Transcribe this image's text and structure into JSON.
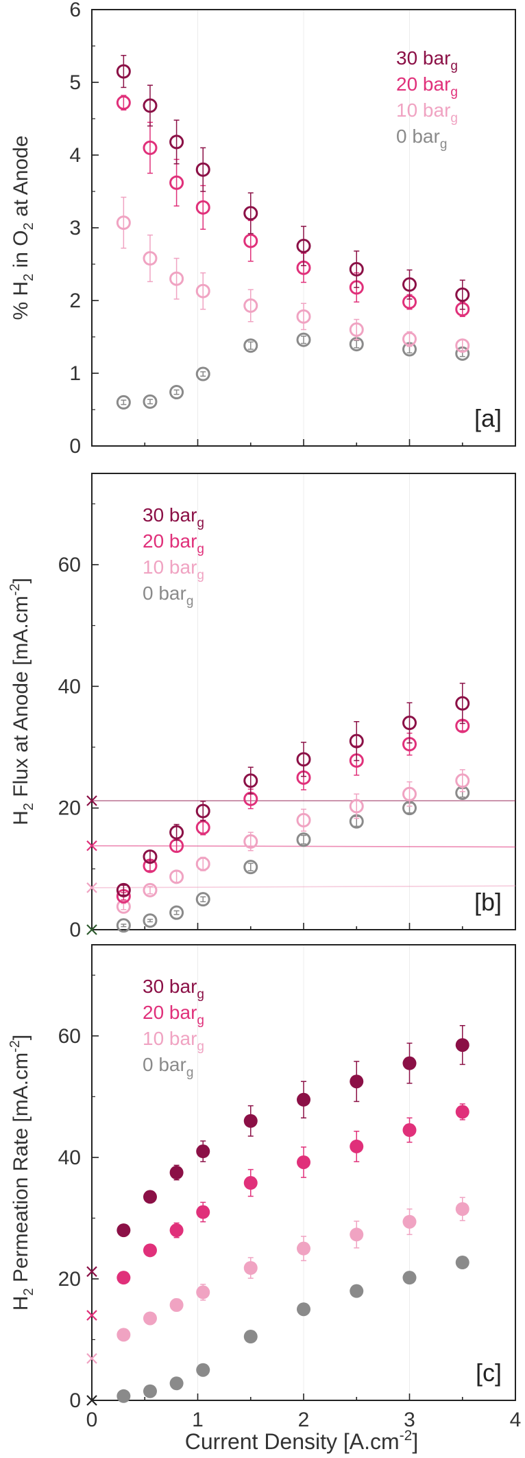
{
  "figure": {
    "x_axis_label": "Current Density [A.cm",
    "x_axis_sup": "-2",
    "x_axis_close": "]",
    "x_ticks": [
      "0",
      "1",
      "2",
      "3",
      "4"
    ]
  },
  "colors": {
    "30": "#8b1046",
    "20": "#e0307a",
    "10": "#f0a3c2",
    "0": "#8a8a8a"
  },
  "chart_data": [
    {
      "type": "scatter",
      "panel": "[a]",
      "ylabel": "% H2 in O2 at Anode",
      "ylabel_parts": [
        "% H",
        "2",
        " in O",
        "2",
        " at Anode"
      ],
      "xlim": [
        0,
        4
      ],
      "ylim": [
        0,
        6
      ],
      "y_ticks": [
        "0",
        "1",
        "2",
        "3",
        "4",
        "5",
        "6"
      ],
      "marker": "open",
      "legend_position": "top-right",
      "series": [
        {
          "name": "30 bar",
          "sub": "g",
          "key": "30",
          "x": [
            0.3,
            0.55,
            0.8,
            1.05,
            1.5,
            2.0,
            2.5,
            3.0,
            3.5
          ],
          "y": [
            5.15,
            4.68,
            4.18,
            3.8,
            3.2,
            2.75,
            2.43,
            2.22,
            2.08
          ],
          "err": [
            0.22,
            0.28,
            0.3,
            0.3,
            0.28,
            0.27,
            0.25,
            0.2,
            0.2
          ]
        },
        {
          "name": "20 bar",
          "sub": "g",
          "key": "20",
          "x": [
            0.3,
            0.55,
            0.8,
            1.05,
            1.5,
            2.0,
            2.5,
            3.0,
            3.5
          ],
          "y": [
            4.72,
            4.1,
            3.62,
            3.28,
            2.82,
            2.45,
            2.18,
            1.98,
            1.88
          ],
          "err": [
            0.1,
            0.35,
            0.32,
            0.3,
            0.28,
            0.2,
            0.2,
            0.1,
            0.1
          ]
        },
        {
          "name": "10 bar",
          "sub": "g",
          "key": "10",
          "x": [
            0.3,
            0.55,
            0.8,
            1.05,
            1.5,
            2.0,
            2.5,
            3.0,
            3.5
          ],
          "y": [
            3.07,
            2.58,
            2.3,
            2.13,
            1.93,
            1.78,
            1.6,
            1.47,
            1.38
          ],
          "err": [
            0.35,
            0.32,
            0.28,
            0.25,
            0.22,
            0.18,
            0.14,
            0.1,
            0.08
          ]
        },
        {
          "name": "0 bar",
          "sub": "g",
          "key": "0",
          "x": [
            0.3,
            0.55,
            0.8,
            1.05,
            1.5,
            2.0,
            2.5,
            3.0,
            3.5
          ],
          "y": [
            0.6,
            0.61,
            0.74,
            0.99,
            1.38,
            1.46,
            1.4,
            1.33,
            1.27
          ],
          "err": [
            0.03,
            0.03,
            0.03,
            0.03,
            0.05,
            0.05,
            0.05,
            0.05,
            0.04
          ]
        }
      ]
    },
    {
      "type": "scatter",
      "panel": "[b]",
      "ylabel": "H2 Flux at Anode [mA.cm-2]",
      "ylabel_parts": [
        "H",
        "2",
        " Flux at Anode [mA.cm",
        "-2",
        "]"
      ],
      "xlim": [
        0,
        4
      ],
      "ylim": [
        0,
        75
      ],
      "y_ticks": [
        "0",
        "20",
        "40",
        "60"
      ],
      "marker": "open",
      "legend_position": "top-left",
      "reference_lines": [
        {
          "key": "30",
          "y0": 21.2,
          "y1": 21.2
        },
        {
          "key": "20",
          "y0": 13.8,
          "y1": 13.6
        },
        {
          "key": "10",
          "y0": 6.9,
          "y1": 7.2
        }
      ],
      "axis_markers": [
        {
          "key": "30",
          "y": 21.2
        },
        {
          "key": "20",
          "y": 13.8
        },
        {
          "key": "10",
          "y": 6.9
        },
        {
          "key": "zero",
          "y": 0
        }
      ],
      "series": [
        {
          "name": "30 bar",
          "sub": "g",
          "key": "30",
          "x": [
            0.3,
            0.55,
            0.8,
            1.05,
            1.5,
            2.0,
            2.5,
            3.0,
            3.5
          ],
          "y": [
            6.5,
            12.0,
            16.0,
            19.5,
            24.5,
            28.0,
            31.0,
            34.0,
            37.2
          ],
          "err": [
            0.8,
            1.0,
            1.3,
            1.6,
            2.2,
            2.8,
            3.2,
            3.3,
            3.3
          ]
        },
        {
          "name": "20 bar",
          "sub": "g",
          "key": "20",
          "x": [
            0.3,
            0.55,
            0.8,
            1.05,
            1.5,
            2.0,
            2.5,
            3.0,
            3.5
          ],
          "y": [
            5.5,
            10.5,
            13.8,
            16.8,
            21.5,
            25.0,
            27.8,
            30.5,
            33.5
          ],
          "err": [
            0.6,
            0.8,
            1.0,
            1.2,
            1.6,
            2.0,
            2.4,
            1.8,
            0.8
          ]
        },
        {
          "name": "10 bar",
          "sub": "g",
          "key": "10",
          "x": [
            0.3,
            0.55,
            0.8,
            1.05,
            1.5,
            2.0,
            2.5,
            3.0,
            3.5
          ],
          "y": [
            3.8,
            6.5,
            8.7,
            10.8,
            14.5,
            18.0,
            20.3,
            22.3,
            24.5
          ],
          "err": [
            0.5,
            0.6,
            0.9,
            1.1,
            1.5,
            1.8,
            2.0,
            2.0,
            1.8
          ]
        },
        {
          "name": "0 bar",
          "sub": "g",
          "key": "0",
          "x": [
            0.3,
            0.55,
            0.8,
            1.05,
            1.5,
            2.0,
            2.5,
            3.0,
            3.5
          ],
          "y": [
            0.7,
            1.5,
            2.8,
            5.0,
            10.3,
            14.8,
            17.8,
            20.0,
            22.5
          ],
          "err": [
            0.2,
            0.2,
            0.3,
            0.4,
            0.6,
            0.7,
            0.8,
            0.8,
            0.7
          ]
        }
      ]
    },
    {
      "type": "scatter",
      "panel": "[c]",
      "ylabel": "H2 Permeation Rate [mA.cm-2]",
      "ylabel_parts": [
        "H",
        "2",
        " Permeation Rate [mA.cm",
        "-2",
        "]"
      ],
      "xlim": [
        0,
        4
      ],
      "ylim": [
        0,
        75
      ],
      "y_ticks": [
        "0",
        "20",
        "40",
        "60"
      ],
      "marker": "filled",
      "legend_position": "top-left",
      "axis_markers": [
        {
          "key": "30",
          "y": 21.2
        },
        {
          "key": "20",
          "y": 14.0
        },
        {
          "key": "10",
          "y": 6.9
        },
        {
          "key": "axis",
          "y": 0
        }
      ],
      "series": [
        {
          "name": "30 bar",
          "sub": "g",
          "key": "30",
          "x": [
            0.3,
            0.55,
            0.8,
            1.05,
            1.5,
            2.0,
            2.5,
            3.0,
            3.5
          ],
          "y": [
            28.0,
            33.5,
            37.5,
            41.0,
            46.0,
            49.5,
            52.5,
            55.5,
            58.5
          ],
          "err": [
            0.6,
            0.7,
            1.2,
            1.7,
            2.5,
            3.0,
            3.3,
            3.3,
            3.2
          ]
        },
        {
          "name": "20 bar",
          "sub": "g",
          "key": "20",
          "x": [
            0.3,
            0.55,
            0.8,
            1.05,
            1.5,
            2.0,
            2.5,
            3.0,
            3.5
          ],
          "y": [
            20.2,
            24.7,
            28.0,
            31.0,
            35.8,
            39.2,
            41.8,
            44.5,
            47.5
          ],
          "err": [
            0.5,
            0.6,
            1.2,
            1.6,
            2.2,
            2.5,
            2.5,
            2.0,
            1.3
          ]
        },
        {
          "name": "10 bar",
          "sub": "g",
          "key": "10",
          "x": [
            0.3,
            0.55,
            0.8,
            1.05,
            1.5,
            2.0,
            2.5,
            3.0,
            3.5
          ],
          "y": [
            10.8,
            13.5,
            15.7,
            17.8,
            21.8,
            25.0,
            27.3,
            29.4,
            31.5
          ],
          "err": [
            0.4,
            0.6,
            1.0,
            1.3,
            1.7,
            2.0,
            2.2,
            2.1,
            1.9
          ]
        },
        {
          "name": "0 bar",
          "sub": "g",
          "key": "0",
          "x": [
            0.3,
            0.55,
            0.8,
            1.05,
            1.5,
            2.0,
            2.5,
            3.0,
            3.5
          ],
          "y": [
            0.7,
            1.5,
            2.8,
            5.0,
            10.5,
            15.0,
            18.0,
            20.2,
            22.7
          ],
          "err": [
            0,
            0,
            0,
            0,
            0,
            0,
            0,
            0,
            0
          ]
        }
      ]
    }
  ]
}
